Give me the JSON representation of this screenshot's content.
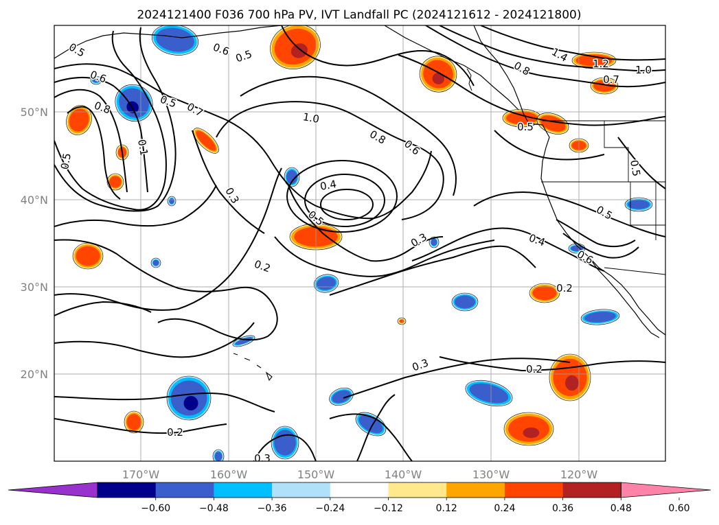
{
  "title": "2024121400 F036 700 hPa PV, IVT Landfall PC (2024121612 - 2024121800)",
  "latitude_labels": [
    "50°N",
    "40°N",
    "30°N",
    "20°N"
  ],
  "longitude_labels": [
    "170°W",
    "160°W",
    "150°W",
    "140°W",
    "130°W",
    "120°W"
  ],
  "contour_labels": [
    "0.5",
    "0.6",
    "0.8",
    "0.1",
    "0.5",
    "0.6",
    "0.5",
    "0.5",
    "0.7",
    "0.3",
    "1.0",
    "0.8",
    "0.6",
    "0.4",
    "0.5",
    "0.2",
    "0.3",
    "0.4",
    "0.2",
    "0.3",
    "0.2",
    "0.2",
    "0.3",
    "1.4",
    "1.2",
    "1.0",
    "0.7",
    "0.8",
    "0.5",
    "0.5",
    "0.5",
    "0.6"
  ],
  "colorbar": {
    "tick_labels": [
      "−0.60",
      "−0.48",
      "−0.36",
      "−0.24",
      "−0.12",
      "0.12",
      "0.24",
      "0.36",
      "0.48",
      "0.60"
    ],
    "colors": [
      "#9932cc",
      "#00008b",
      "#3a5fcd",
      "#00bfff",
      "#b0e0fa",
      "#ffffff",
      "#ffe98c",
      "#ffa500",
      "#ff4500",
      "#b22222",
      "#ff82a8"
    ]
  },
  "shading_colors": {
    "strong_positive": "#b22222",
    "positive": "#ff4500",
    "weak_positive": "#ffa500",
    "edge_positive": "#ffe98c",
    "strong_negative": "#00008b",
    "negative": "#3a5fcd",
    "weak_negative": "#00bfff",
    "edge_negative": "#b0e0fa"
  },
  "grid": true
}
